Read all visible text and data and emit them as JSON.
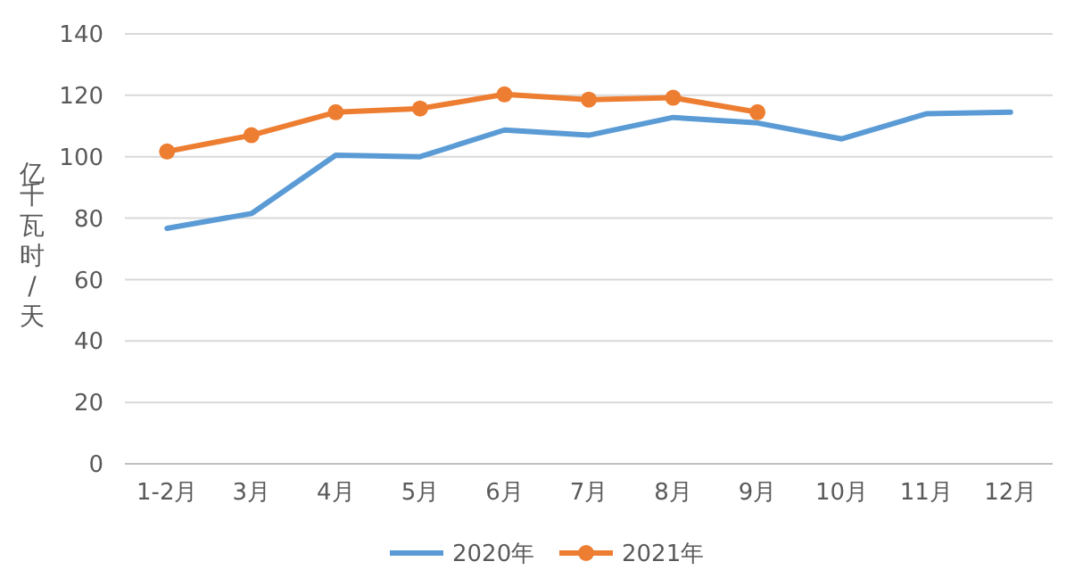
{
  "chart_data": {
    "type": "line",
    "ylabel": "亿千瓦时/天",
    "categories": [
      "1-2月",
      "3月",
      "4月",
      "5月",
      "6月",
      "7月",
      "8月",
      "9月",
      "10月",
      "11月",
      "12月"
    ],
    "series": [
      {
        "name": "2020年",
        "color": "#5b9bd5",
        "marker": "none",
        "values": [
          76.7,
          81.5,
          100.5,
          100,
          108.7,
          107,
          112.8,
          111,
          105.8,
          114,
          114.5
        ]
      },
      {
        "name": "2021年",
        "color": "#ed7d31",
        "marker": "circle",
        "values": [
          101.7,
          107,
          114.5,
          115.7,
          120.3,
          118.6,
          119.2,
          114.5,
          null,
          null,
          null
        ]
      }
    ],
    "ylim": [
      0,
      140
    ],
    "yticks": [
      0,
      20,
      40,
      60,
      80,
      100,
      120,
      140
    ],
    "grid": "y",
    "legend": "bottom"
  }
}
